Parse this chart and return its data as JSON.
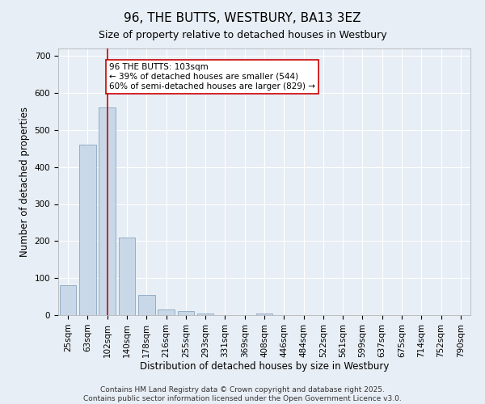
{
  "title": "96, THE BUTTS, WESTBURY, BA13 3EZ",
  "subtitle": "Size of property relative to detached houses in Westbury",
  "xlabel": "Distribution of detached houses by size in Westbury",
  "ylabel": "Number of detached properties",
  "categories": [
    "25sqm",
    "63sqm",
    "102sqm",
    "140sqm",
    "178sqm",
    "216sqm",
    "255sqm",
    "293sqm",
    "331sqm",
    "369sqm",
    "408sqm",
    "446sqm",
    "484sqm",
    "522sqm",
    "561sqm",
    "599sqm",
    "637sqm",
    "675sqm",
    "714sqm",
    "752sqm",
    "790sqm"
  ],
  "values": [
    80,
    460,
    560,
    210,
    55,
    15,
    10,
    5,
    0,
    0,
    5,
    0,
    0,
    0,
    0,
    0,
    0,
    0,
    0,
    0,
    0
  ],
  "bar_color": "#c8d8e8",
  "bar_edge_color": "#7a9ab5",
  "vline_x": 2,
  "vline_color": "#cc0000",
  "annotation_text": "96 THE BUTTS: 103sqm\n← 39% of detached houses are smaller (544)\n60% of semi-detached houses are larger (829) →",
  "annotation_box_color": "#ffffff",
  "annotation_box_edge": "#cc0000",
  "ylim": [
    0,
    720
  ],
  "yticks": [
    0,
    100,
    200,
    300,
    400,
    500,
    600,
    700
  ],
  "background_color": "#e8eef5",
  "plot_background": "#e8eef5",
  "footer": "Contains HM Land Registry data © Crown copyright and database right 2025.\nContains public sector information licensed under the Open Government Licence v3.0.",
  "title_fontsize": 11,
  "subtitle_fontsize": 9,
  "xlabel_fontsize": 8.5,
  "ylabel_fontsize": 8.5,
  "tick_fontsize": 7.5,
  "footer_fontsize": 6.5
}
